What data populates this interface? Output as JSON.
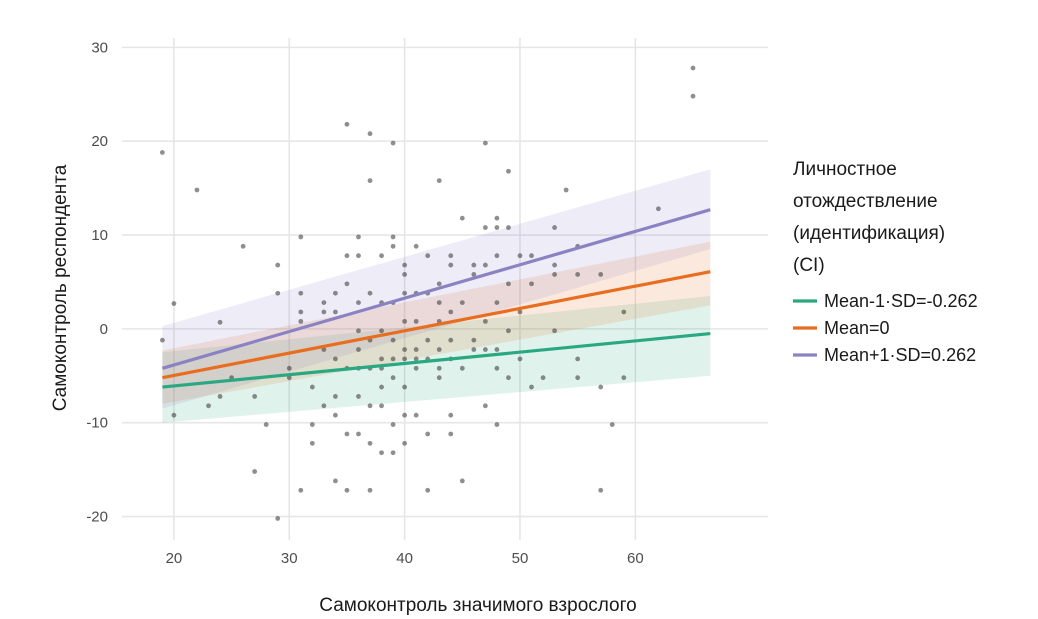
{
  "chart_data": {
    "type": "scatter",
    "xlabel": "Самоконтроль значимого взрослого",
    "ylabel": "Самоконтроль респондента",
    "xlim": [
      15.5,
      71.5
    ],
    "ylim": [
      -22.5,
      31
    ],
    "x_ticks": [
      20,
      30,
      40,
      50,
      60
    ],
    "y_ticks": [
      -20,
      -10,
      0,
      10,
      20,
      30
    ],
    "grid": true,
    "legend": {
      "position": "right",
      "title_lines": [
        "Личностное",
        "отождествление",
        "(идентификация)",
        "(CI)"
      ],
      "entries": [
        {
          "label": "Mean-1·SD=-0.262",
          "color": "#2aa881"
        },
        {
          "label": "Mean=0",
          "color": "#e86d1f"
        },
        {
          "label": "Mean+1·SD=0.262",
          "color": "#8a82c2"
        }
      ]
    },
    "lines": [
      {
        "name": "Mean-1·SD=-0.262",
        "color": "#2aa881",
        "x": [
          19,
          66.5
        ],
        "y": [
          -6.2,
          -0.5
        ],
        "ci_lower": [
          -10,
          -5
        ],
        "ci_upper": [
          -2.5,
          3.5
        ]
      },
      {
        "name": "Mean=0",
        "color": "#e86d1f",
        "x": [
          19,
          66.5
        ],
        "y": [
          -5.2,
          6.1
        ],
        "ci_lower": [
          -8,
          2.5
        ],
        "ci_upper": [
          -2.3,
          9.3
        ]
      },
      {
        "name": "Mean+1·SD=0.262",
        "color": "#8a82c2",
        "x": [
          19,
          66.5
        ],
        "y": [
          -4.2,
          12.7
        ],
        "ci_lower": [
          -8.5,
          8.5
        ],
        "ci_upper": [
          0.3,
          17
        ]
      }
    ],
    "points": [
      [
        19,
        18.8
      ],
      [
        19,
        -1.2
      ],
      [
        20,
        2.7
      ],
      [
        20,
        -9.2
      ],
      [
        22,
        14.8
      ],
      [
        23,
        -8.2
      ],
      [
        24,
        0.7
      ],
      [
        24,
        -7.2
      ],
      [
        25,
        -5.2
      ],
      [
        26,
        8.8
      ],
      [
        27,
        -15.2
      ],
      [
        27,
        -7.2
      ],
      [
        28,
        -10.2
      ],
      [
        29,
        6.8
      ],
      [
        29,
        3.8
      ],
      [
        29,
        -20.2
      ],
      [
        30,
        -4.2
      ],
      [
        30,
        -5.2
      ],
      [
        31,
        9.8
      ],
      [
        31,
        3.8
      ],
      [
        31,
        1.8
      ],
      [
        31,
        0.8
      ],
      [
        31,
        -17.2
      ],
      [
        32,
        -6.2
      ],
      [
        32,
        -10.2
      ],
      [
        32,
        -12.2
      ],
      [
        33,
        2.8
      ],
      [
        33,
        1.8
      ],
      [
        33,
        -2.2
      ],
      [
        33,
        -8.2
      ],
      [
        34,
        3.8
      ],
      [
        34,
        1.8
      ],
      [
        34,
        -3.2
      ],
      [
        34,
        -7.2
      ],
      [
        34,
        -9.2
      ],
      [
        34,
        -16.2
      ],
      [
        35,
        21.8
      ],
      [
        35,
        7.8
      ],
      [
        35,
        4.8
      ],
      [
        35,
        -4.2
      ],
      [
        35,
        -11.2
      ],
      [
        35,
        -17.2
      ],
      [
        36,
        9.8
      ],
      [
        36,
        7.8
      ],
      [
        36,
        2.8
      ],
      [
        36,
        -0.2
      ],
      [
        36,
        -2.2
      ],
      [
        36,
        -4.2
      ],
      [
        36,
        -7.2
      ],
      [
        36,
        -11.2
      ],
      [
        37,
        20.8
      ],
      [
        37,
        15.8
      ],
      [
        37,
        3.8
      ],
      [
        37,
        -1.2
      ],
      [
        37,
        -4.2
      ],
      [
        37,
        -8.2
      ],
      [
        37,
        -12.2
      ],
      [
        37,
        -17.2
      ],
      [
        38,
        7.8
      ],
      [
        38,
        2.8
      ],
      [
        38,
        -0.2
      ],
      [
        38,
        -3.2
      ],
      [
        38,
        -4.2
      ],
      [
        38,
        -6.2
      ],
      [
        38,
        -8.2
      ],
      [
        38,
        -13.2
      ],
      [
        39,
        19.8
      ],
      [
        39,
        9.8
      ],
      [
        39,
        8.8
      ],
      [
        39,
        2.8
      ],
      [
        39,
        -1.2
      ],
      [
        39,
        -3.2
      ],
      [
        39,
        -5.2
      ],
      [
        39,
        -10.2
      ],
      [
        39,
        -13.2
      ],
      [
        40,
        6.8
      ],
      [
        40,
        5.8
      ],
      [
        40,
        3.8
      ],
      [
        40,
        0.8
      ],
      [
        40,
        -2.2
      ],
      [
        40,
        -3.2
      ],
      [
        40,
        -6.2
      ],
      [
        40,
        -9.2
      ],
      [
        40,
        -12.2
      ],
      [
        41,
        8.8
      ],
      [
        41,
        3.8
      ],
      [
        41,
        0.8
      ],
      [
        41,
        -2.2
      ],
      [
        41,
        -3.2
      ],
      [
        41,
        -4.2
      ],
      [
        41,
        -9.2
      ],
      [
        42,
        7.8
      ],
      [
        42,
        3.8
      ],
      [
        42,
        -1.2
      ],
      [
        42,
        -3.2
      ],
      [
        42,
        -11.2
      ],
      [
        42,
        -17.2
      ],
      [
        43,
        15.8
      ],
      [
        43,
        4.8
      ],
      [
        43,
        2.8
      ],
      [
        43,
        0.8
      ],
      [
        43,
        -2.2
      ],
      [
        43,
        -4.2
      ],
      [
        43,
        -5.2
      ],
      [
        44,
        7.8
      ],
      [
        44,
        6.8
      ],
      [
        44,
        1.8
      ],
      [
        44,
        -1.2
      ],
      [
        44,
        -3.2
      ],
      [
        44,
        -9.2
      ],
      [
        44,
        -11.2
      ],
      [
        45,
        11.8
      ],
      [
        45,
        2.8
      ],
      [
        45,
        -4.2
      ],
      [
        45,
        -16.2
      ],
      [
        46,
        6.8
      ],
      [
        46,
        5.8
      ],
      [
        46,
        -1.2
      ],
      [
        46,
        -2.2
      ],
      [
        47,
        19.8
      ],
      [
        47,
        10.8
      ],
      [
        47,
        6.8
      ],
      [
        47,
        0.8
      ],
      [
        47,
        -2.2
      ],
      [
        47,
        -8.2
      ],
      [
        48,
        11.8
      ],
      [
        48,
        10.8
      ],
      [
        48,
        7.8
      ],
      [
        48,
        2.8
      ],
      [
        48,
        -2.2
      ],
      [
        48,
        -4.2
      ],
      [
        48,
        -10.2
      ],
      [
        49,
        16.8
      ],
      [
        49,
        10.8
      ],
      [
        49,
        4.8
      ],
      [
        49,
        -0.2
      ],
      [
        49,
        -5.2
      ],
      [
        50,
        7.8
      ],
      [
        50,
        1.8
      ],
      [
        50,
        -3.2
      ],
      [
        51,
        7.8
      ],
      [
        51,
        4.8
      ],
      [
        51,
        -6.2
      ],
      [
        52,
        -5.2
      ],
      [
        53,
        10.8
      ],
      [
        53,
        6.8
      ],
      [
        53,
        5.8
      ],
      [
        53,
        -0.2
      ],
      [
        54,
        14.8
      ],
      [
        55,
        8.8
      ],
      [
        55,
        5.8
      ],
      [
        55,
        -3.2
      ],
      [
        55,
        -5.2
      ],
      [
        57,
        5.8
      ],
      [
        57,
        -6.2
      ],
      [
        57,
        -17.2
      ],
      [
        58,
        -10.2
      ],
      [
        59,
        1.8
      ],
      [
        59,
        -5.2
      ],
      [
        62,
        12.8
      ],
      [
        65,
        27.8
      ],
      [
        65,
        24.8
      ]
    ]
  }
}
